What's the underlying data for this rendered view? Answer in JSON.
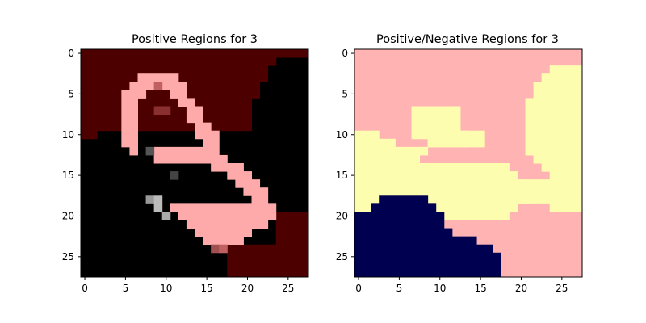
{
  "chart_data": [
    {
      "type": "heatmap",
      "title": "Positive Regions for 3",
      "xticks": [
        0,
        5,
        10,
        15,
        20,
        25
      ],
      "yticks": [
        0,
        5,
        10,
        15,
        20,
        25
      ],
      "xlim": [
        -0.5,
        27.5
      ],
      "ylim": [
        27.5,
        -0.5
      ],
      "grid": false,
      "colors": {
        "positive_region": "#4d0000",
        "stroke": "#ffaaaa",
        "background": "#000000"
      },
      "description_values": {
        "image_size": [
          28,
          28
        ],
        "boundary_rows": [
          [
            0,
            0,
            28
          ],
          [
            1,
            0,
            24
          ],
          [
            2,
            0,
            23
          ],
          [
            3,
            0,
            23
          ],
          [
            4,
            0,
            22
          ],
          [
            5,
            0,
            22
          ],
          [
            6,
            0,
            21
          ],
          [
            7,
            0,
            21
          ],
          [
            8,
            0,
            21
          ],
          [
            9,
            0,
            21
          ],
          [
            10,
            0,
            2
          ],
          [
            11,
            0,
            0
          ],
          [
            12,
            0,
            0
          ],
          [
            13,
            0,
            0
          ],
          [
            14,
            0,
            0
          ],
          [
            15,
            0,
            0
          ],
          [
            16,
            0,
            0
          ],
          [
            17,
            0,
            0
          ],
          [
            18,
            0,
            0
          ],
          [
            19,
            0,
            0
          ],
          [
            20,
            0,
            0
          ],
          [
            21,
            24,
            28
          ],
          [
            22,
            24,
            28
          ],
          [
            23,
            24,
            28
          ],
          [
            24,
            18,
            28
          ],
          [
            25,
            18,
            28
          ],
          [
            26,
            18,
            28
          ],
          [
            27,
            18,
            28
          ]
        ]
      }
    },
    {
      "type": "heatmap",
      "title": "Positive/Negative Regions for 3",
      "xticks": [
        0,
        5,
        10,
        15,
        20,
        25
      ],
      "yticks": [
        0,
        5,
        10,
        15,
        20,
        25
      ],
      "xlim": [
        -0.5,
        27.5
      ],
      "ylim": [
        27.5,
        -0.5
      ],
      "grid": false,
      "colors": {
        "pink": "#ffb3b3",
        "yellow": "#fdfdb0",
        "navy": "#000050"
      }
    }
  ]
}
